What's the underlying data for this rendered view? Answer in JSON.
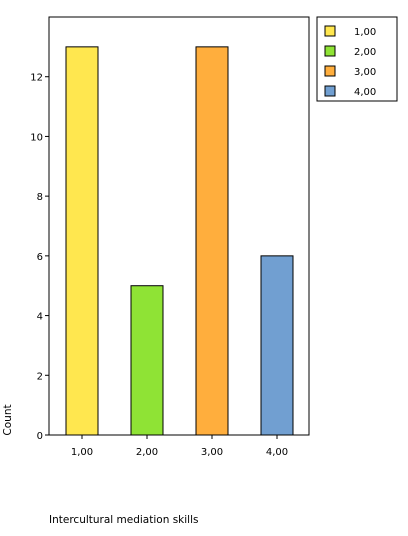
{
  "chart_data": {
    "type": "bar",
    "categories": [
      "1,00",
      "2,00",
      "3,00",
      "4,00"
    ],
    "values": [
      13,
      5,
      13,
      6
    ],
    "colors": [
      "#FFE74F",
      "#8FE335",
      "#FFAE3D",
      "#719FD1"
    ],
    "xlabel": "Intercultural mediation skills",
    "ylabel": "Count",
    "ylim": [
      0,
      14
    ],
    "yticks": [
      "0",
      "2",
      "4",
      "6",
      "8",
      "10",
      "12"
    ],
    "grid": false,
    "legend": {
      "placement": "top-right",
      "entries": [
        "1,00",
        "2,00",
        "3,00",
        "4,00"
      ]
    }
  }
}
